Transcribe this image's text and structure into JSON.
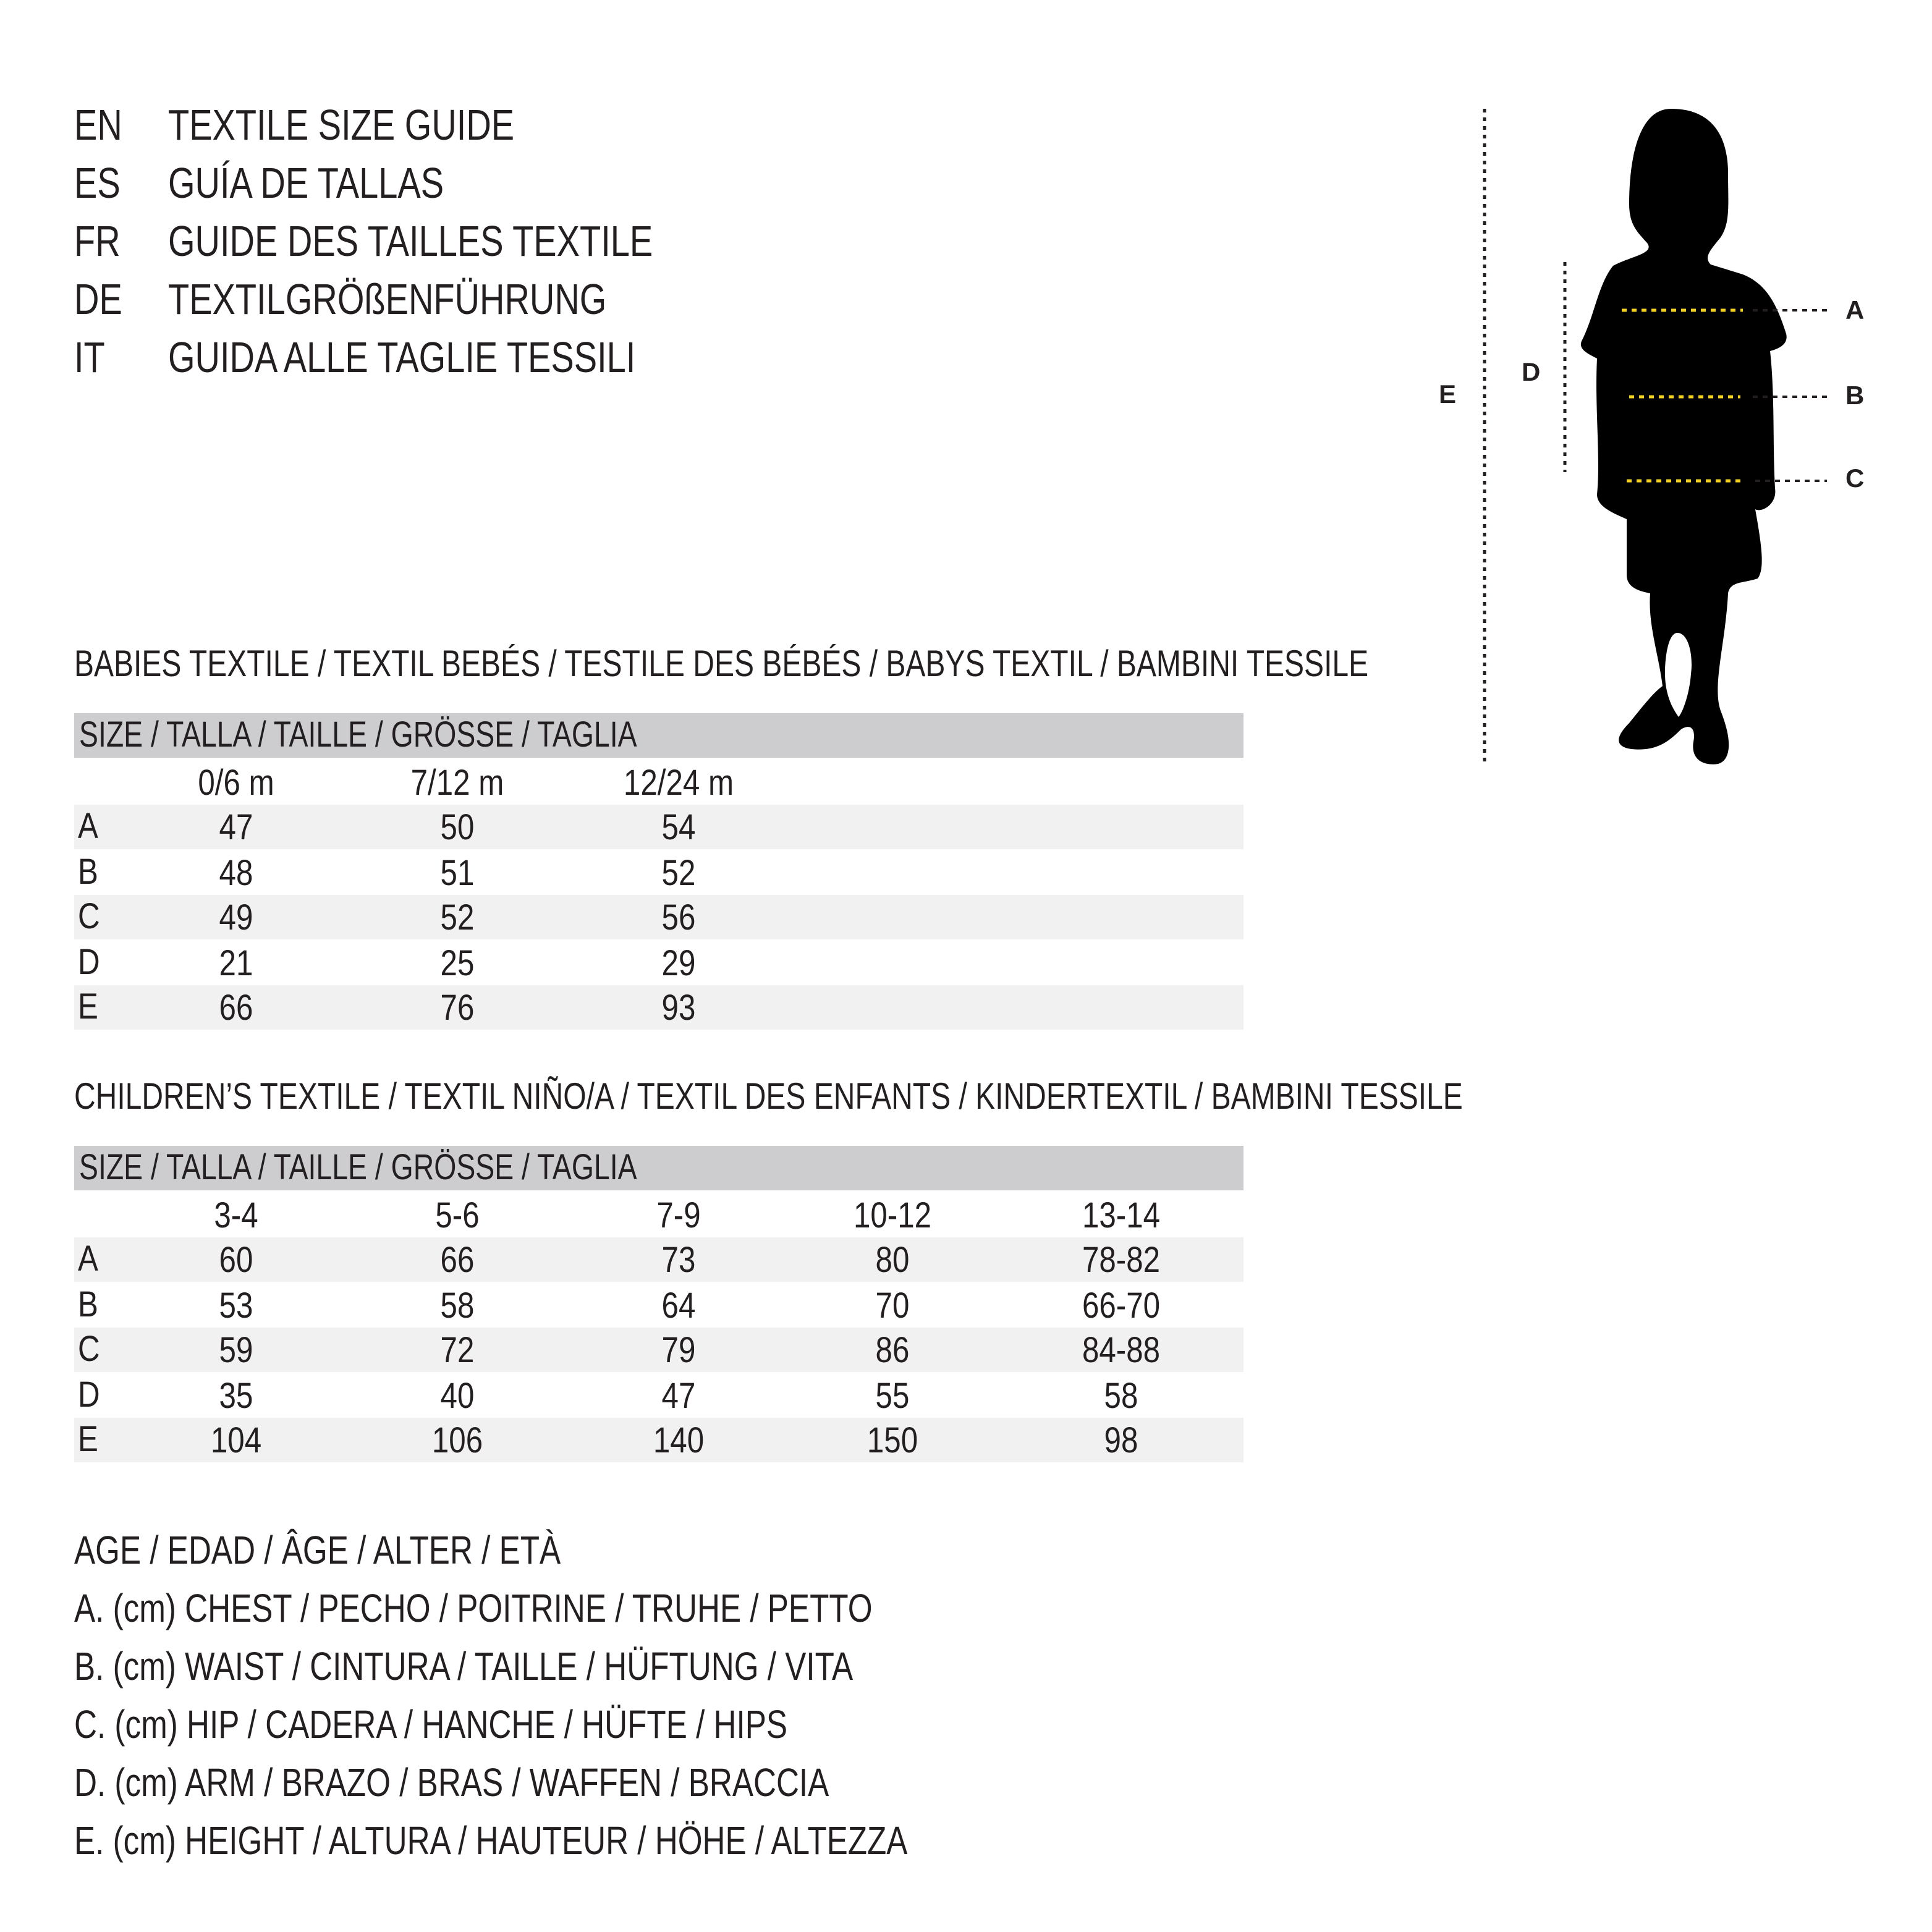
{
  "header": {
    "lines": [
      {
        "code": "EN",
        "text": "TEXTILE SIZE GUIDE"
      },
      {
        "code": "ES",
        "text": "GUÍA DE TALLAS"
      },
      {
        "code": "FR",
        "text": "GUIDE DES TAILLES TEXTILE"
      },
      {
        "code": "DE",
        "text": "TEXTILGRÖßENFÜHRUNG"
      },
      {
        "code": "IT",
        "text": "GUIDA ALLE TAGLIE TESSILI"
      }
    ]
  },
  "babies": {
    "title": "BABIES TEXTILE / TEXTIL BEBÉS / TESTILE DES BÉBÉS / BABYS TEXTIL / BAMBINI TESSILE",
    "size_label": "SIZE / TALLA / TAILLE / GRÖSSE / TAGLIA",
    "columns": [
      "0/6 m",
      "7/12 m",
      "12/24 m"
    ],
    "rows": [
      {
        "label": "A",
        "values": [
          "47",
          "50",
          "54"
        ]
      },
      {
        "label": "B",
        "values": [
          "48",
          "51",
          "52"
        ]
      },
      {
        "label": "C",
        "values": [
          "49",
          "52",
          "56"
        ]
      },
      {
        "label": "D",
        "values": [
          "21",
          "25",
          "29"
        ]
      },
      {
        "label": "E",
        "values": [
          "66",
          "76",
          "93"
        ]
      }
    ]
  },
  "children": {
    "title": "CHILDREN’S TEXTILE / TEXTIL NIÑO/A / TEXTIL DES ENFANTS / KINDERTEXTIL / BAMBINI TESSILE",
    "size_label": "SIZE / TALLA / TAILLE / GRÖSSE / TAGLIA",
    "columns": [
      "3-4",
      "5-6",
      "7-9",
      "10-12",
      "13-14"
    ],
    "rows": [
      {
        "label": "A",
        "values": [
          "60",
          "66",
          "73",
          "80",
          "78-82"
        ]
      },
      {
        "label": "B",
        "values": [
          "53",
          "58",
          "64",
          "70",
          "66-70"
        ]
      },
      {
        "label": "C",
        "values": [
          "59",
          "72",
          "79",
          "86",
          "84-88"
        ]
      },
      {
        "label": "D",
        "values": [
          "35",
          "40",
          "47",
          "55",
          "58"
        ]
      },
      {
        "label": "E",
        "values": [
          "104",
          "106",
          "140",
          "150",
          "98"
        ]
      }
    ]
  },
  "legend": [
    "AGE / EDAD / ÂGE / ALTER / ETÀ",
    "A. (cm) CHEST / PECHO / POITRINE / TRUHE / PETTO",
    "B. (cm) WAIST / CINTURA / TAILLE / HÜFTUNG / VITA",
    "C. (cm) HIP / CADERA / HANCHE / HÜFTE / HIPS",
    "D. (cm) ARM / BRAZO / BRAS / WAFFEN / BRACCIA",
    "E. (cm) HEIGHT / ALTURA / HAUTEUR / HÖHE / ALTEZZA"
  ],
  "figure": {
    "labels": {
      "A": "A",
      "B": "B",
      "C": "C",
      "D": "D",
      "E": "E"
    },
    "measure_color": "#f2d21a",
    "silhouette_color": "#000000"
  }
}
